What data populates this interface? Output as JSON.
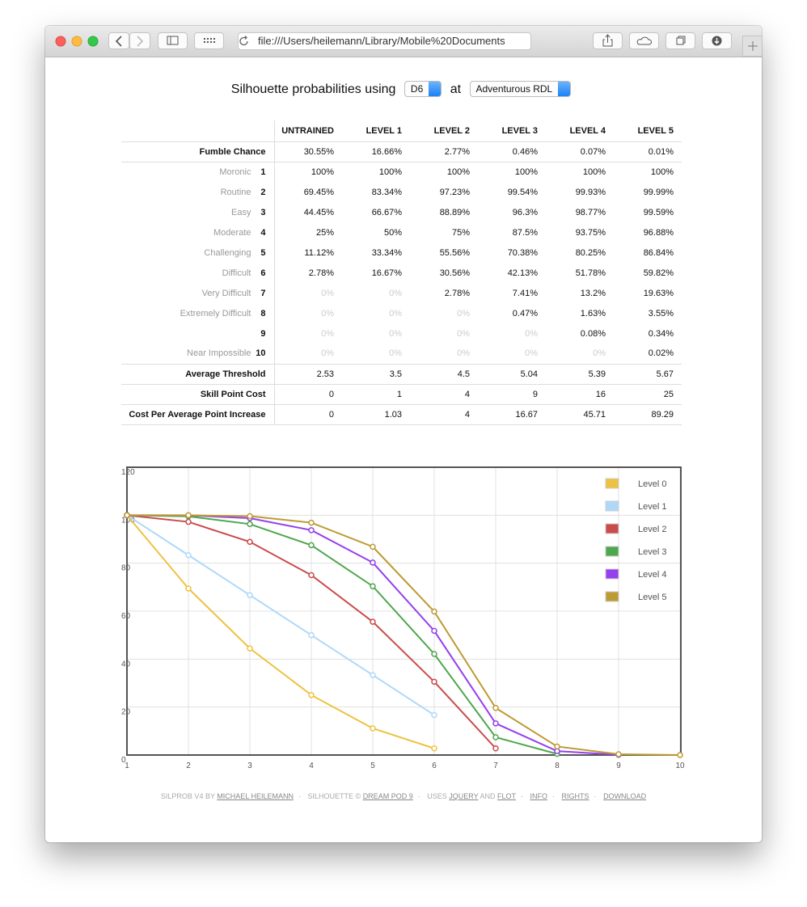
{
  "browser": {
    "url": "file:///Users/heilemann/Library/Mobile%20Documents"
  },
  "header": {
    "title": "Silhouette probabilities using",
    "die": "D6",
    "at": "at",
    "ruleset": "Adventurous RDL"
  },
  "table": {
    "columns": [
      "UNTRAINED",
      "LEVEL 1",
      "LEVEL 2",
      "LEVEL 3",
      "LEVEL 4",
      "LEVEL 5"
    ],
    "rows": [
      {
        "label": "Fumble Chance",
        "values": [
          "30.55%",
          "16.66%",
          "2.77%",
          "0.46%",
          "0.07%",
          "0.01%"
        ]
      },
      {
        "name": "Moronic",
        "level": 1,
        "values": [
          "100%",
          "100%",
          "100%",
          "100%",
          "100%",
          "100%"
        ]
      },
      {
        "name": "Routine",
        "level": 2,
        "values": [
          "69.45%",
          "83.34%",
          "97.23%",
          "99.54%",
          "99.93%",
          "99.99%"
        ]
      },
      {
        "name": "Easy",
        "level": 3,
        "values": [
          "44.45%",
          "66.67%",
          "88.89%",
          "96.3%",
          "98.77%",
          "99.59%"
        ]
      },
      {
        "name": "Moderate",
        "level": 4,
        "values": [
          "25%",
          "50%",
          "75%",
          "87.5%",
          "93.75%",
          "96.88%"
        ]
      },
      {
        "name": "Challenging",
        "level": 5,
        "values": [
          "11.12%",
          "33.34%",
          "55.56%",
          "70.38%",
          "80.25%",
          "86.84%"
        ]
      },
      {
        "name": "Difficult",
        "level": 6,
        "values": [
          "2.78%",
          "16.67%",
          "30.56%",
          "42.13%",
          "51.78%",
          "59.82%"
        ]
      },
      {
        "name": "Very Difficult",
        "level": 7,
        "values": [
          "0%",
          "0%",
          "2.78%",
          "7.41%",
          "13.2%",
          "19.63%"
        ]
      },
      {
        "name": "Extremely Difficult",
        "level": 8,
        "values": [
          "0%",
          "0%",
          "0%",
          "0.47%",
          "1.63%",
          "3.55%"
        ]
      },
      {
        "level": 9,
        "values": [
          "0%",
          "0%",
          "0%",
          "0%",
          "0.08%",
          "0.34%"
        ]
      },
      {
        "name": "Near Impossible",
        "level": 10,
        "values": [
          "0%",
          "0%",
          "0%",
          "0%",
          "0%",
          "0.02%"
        ]
      },
      {
        "label": "Average Threshold",
        "values": [
          "2.53",
          "3.5",
          "4.5",
          "5.04",
          "5.39",
          "5.67"
        ]
      },
      {
        "label": "Skill Point Cost",
        "values": [
          "0",
          "1",
          "4",
          "9",
          "16",
          "25"
        ]
      },
      {
        "label": "Cost Per Average Point Increase",
        "values": [
          "0",
          "1.03",
          "4",
          "16.67",
          "45.71",
          "89.29"
        ]
      }
    ]
  },
  "chart_data": {
    "type": "line",
    "x": [
      1,
      2,
      3,
      4,
      5,
      6,
      7,
      8,
      9,
      10
    ],
    "xlim": [
      1,
      10
    ],
    "xticks": [
      1,
      2,
      3,
      4,
      5,
      6,
      7,
      8,
      9,
      10
    ],
    "ylim": [
      0,
      120
    ],
    "yticks": [
      0,
      20,
      40,
      60,
      80,
      100,
      120
    ],
    "grid": true,
    "legend": "top-right",
    "series": [
      {
        "name": "Level 0",
        "color": "#edc240",
        "values": [
          100,
          69.45,
          44.45,
          25,
          11.12,
          2.78,
          null,
          null,
          null,
          null
        ]
      },
      {
        "name": "Level 1",
        "color": "#afd8f8",
        "values": [
          100,
          83.34,
          66.67,
          50,
          33.34,
          16.67,
          null,
          null,
          null,
          null
        ]
      },
      {
        "name": "Level 2",
        "color": "#cb4b4b",
        "values": [
          100,
          97.23,
          88.89,
          75,
          55.56,
          30.56,
          2.78,
          null,
          null,
          null
        ]
      },
      {
        "name": "Level 3",
        "color": "#4da74d",
        "values": [
          100,
          99.54,
          96.3,
          87.5,
          70.38,
          42.13,
          7.41,
          0.47,
          null,
          null
        ]
      },
      {
        "name": "Level 4",
        "color": "#9440ed",
        "values": [
          100,
          99.93,
          98.77,
          93.75,
          80.25,
          51.78,
          13.2,
          1.63,
          0.08,
          null
        ]
      },
      {
        "name": "Level 5",
        "color": "#bd9b33",
        "values": [
          100,
          99.99,
          99.59,
          96.88,
          86.84,
          59.82,
          19.63,
          3.55,
          0.34,
          0.02
        ]
      }
    ]
  },
  "footer": {
    "credit": "SILPROB V4 BY",
    "author": "MICHAEL HEILEMANN",
    "copyright": "SILHOUETTE ©",
    "owner": "DREAM POD 9",
    "uses": "USES",
    "lib1": "JQUERY",
    "and": "AND",
    "lib2": "FLOT",
    "info": "INFO",
    "rights": "RIGHTS",
    "download": "DOWNLOAD"
  }
}
